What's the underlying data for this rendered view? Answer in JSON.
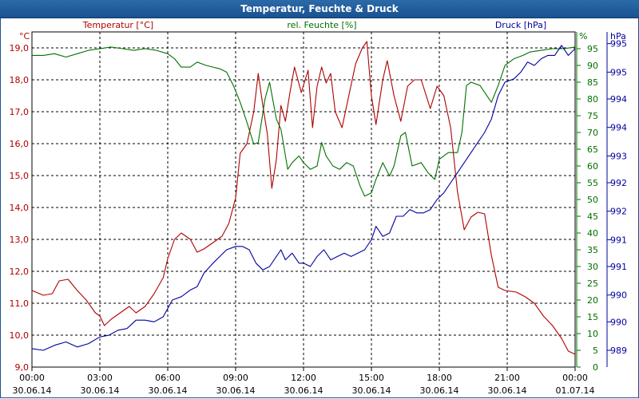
{
  "window": {
    "title": "Temperatur, Feuchte & Druck"
  },
  "colors": {
    "temperature": "#b00000",
    "humidity": "#007000",
    "pressure": "#0000a0",
    "grid": "#000000"
  },
  "chart_data": {
    "type": "line",
    "title": "Temperatur, Feuchte & Druck",
    "x_tick_times": [
      "00:00",
      "03:00",
      "06:00",
      "09:00",
      "12:00",
      "15:00",
      "18:00",
      "21:00",
      "00:00"
    ],
    "x_tick_dates": [
      "30.06.14",
      "30.06.14",
      "30.06.14",
      "30.06.14",
      "30.06.14",
      "30.06.14",
      "30.06.14",
      "30.06.14",
      "01.07.14"
    ],
    "xlim_hours": [
      0,
      24
    ],
    "axes": {
      "temperature": {
        "label": "Temperatur [°C]",
        "unit": "°C",
        "range": [
          9.0,
          19.5
        ],
        "ticks": [
          "9,0",
          "10,0",
          "11,0",
          "12,0",
          "13,0",
          "14,0",
          "15,0",
          "16,0",
          "17,0",
          "18,0",
          "19,0"
        ]
      },
      "humidity": {
        "label": "rel. Feuchte [%]",
        "unit": "%",
        "range": [
          0,
          100
        ],
        "ticks": [
          "0",
          "5",
          "10",
          "15",
          "20",
          "25",
          "30",
          "35",
          "40",
          "45",
          "50",
          "55",
          "60",
          "65",
          "70",
          "75",
          "80",
          "85",
          "90",
          "95"
        ]
      },
      "pressure": {
        "label": "Druck [hPa]",
        "unit": "hPa",
        "range": [
          0,
          100
        ],
        "ticks": [
          {
            "label": "989",
            "pos": 5
          },
          {
            "label": "990",
            "pos": 13.5
          },
          {
            "label": "990",
            "pos": 21.5
          },
          {
            "label": "991",
            "pos": 30
          },
          {
            "label": "991",
            "pos": 38
          },
          {
            "label": "992",
            "pos": 46.5
          },
          {
            "label": "992",
            "pos": 55
          },
          {
            "label": "993",
            "pos": 63
          },
          {
            "label": "994",
            "pos": 71.5
          },
          {
            "label": "994",
            "pos": 80
          },
          {
            "label": "995",
            "pos": 88
          },
          {
            "label": "995",
            "pos": 96.5
          }
        ]
      }
    },
    "series": [
      {
        "name": "Temperatur",
        "axis": "temperature",
        "points": [
          [
            0,
            11.4
          ],
          [
            0.5,
            11.25
          ],
          [
            0.9,
            11.3
          ],
          [
            1.2,
            11.7
          ],
          [
            1.6,
            11.75
          ],
          [
            2.0,
            11.4
          ],
          [
            2.4,
            11.1
          ],
          [
            2.8,
            10.7
          ],
          [
            3.0,
            10.6
          ],
          [
            3.2,
            10.3
          ],
          [
            3.5,
            10.5
          ],
          [
            3.9,
            10.7
          ],
          [
            4.3,
            10.9
          ],
          [
            4.6,
            10.7
          ],
          [
            5.0,
            10.9
          ],
          [
            5.4,
            11.3
          ],
          [
            5.8,
            11.8
          ],
          [
            6.0,
            12.4
          ],
          [
            6.3,
            13.0
          ],
          [
            6.6,
            13.2
          ],
          [
            7.0,
            13.0
          ],
          [
            7.3,
            12.6
          ],
          [
            7.6,
            12.7
          ],
          [
            8.0,
            12.9
          ],
          [
            8.4,
            13.1
          ],
          [
            8.7,
            13.5
          ],
          [
            9.0,
            14.3
          ],
          [
            9.2,
            15.7
          ],
          [
            9.5,
            16.0
          ],
          [
            9.8,
            17.0
          ],
          [
            10.0,
            18.2
          ],
          [
            10.2,
            17.2
          ],
          [
            10.4,
            16.3
          ],
          [
            10.6,
            14.6
          ],
          [
            10.8,
            15.5
          ],
          [
            11.0,
            17.2
          ],
          [
            11.2,
            16.7
          ],
          [
            11.4,
            17.6
          ],
          [
            11.6,
            18.4
          ],
          [
            11.9,
            17.6
          ],
          [
            12.2,
            18.3
          ],
          [
            12.4,
            16.5
          ],
          [
            12.6,
            17.8
          ],
          [
            12.8,
            18.4
          ],
          [
            13.0,
            17.9
          ],
          [
            13.2,
            18.2
          ],
          [
            13.4,
            17.0
          ],
          [
            13.7,
            16.5
          ],
          [
            14.0,
            17.5
          ],
          [
            14.3,
            18.5
          ],
          [
            14.6,
            19.0
          ],
          [
            14.8,
            19.2
          ],
          [
            15.0,
            17.5
          ],
          [
            15.2,
            16.6
          ],
          [
            15.5,
            18.0
          ],
          [
            15.7,
            18.6
          ],
          [
            16.0,
            17.5
          ],
          [
            16.3,
            16.7
          ],
          [
            16.6,
            17.8
          ],
          [
            16.9,
            18.0
          ],
          [
            17.2,
            18.0
          ],
          [
            17.6,
            17.1
          ],
          [
            17.9,
            17.8
          ],
          [
            18.2,
            17.5
          ],
          [
            18.5,
            16.5
          ],
          [
            18.8,
            14.5
          ],
          [
            19.1,
            13.3
          ],
          [
            19.4,
            13.7
          ],
          [
            19.7,
            13.85
          ],
          [
            20.0,
            13.8
          ],
          [
            20.3,
            12.5
          ],
          [
            20.6,
            11.5
          ],
          [
            20.9,
            11.4
          ],
          [
            21.4,
            11.35
          ],
          [
            21.8,
            11.2
          ],
          [
            22.2,
            11.0
          ],
          [
            22.6,
            10.6
          ],
          [
            23.0,
            10.3
          ],
          [
            23.4,
            9.9
          ],
          [
            23.7,
            9.5
          ],
          [
            24.0,
            9.4
          ]
        ]
      },
      {
        "name": "rel. Feuchte",
        "axis": "humidity",
        "points": [
          [
            0,
            93
          ],
          [
            0.5,
            93
          ],
          [
            1.0,
            93.5
          ],
          [
            1.5,
            92.5
          ],
          [
            2.0,
            93.5
          ],
          [
            2.5,
            94.5
          ],
          [
            3.0,
            95
          ],
          [
            3.5,
            95.5
          ],
          [
            4.0,
            95
          ],
          [
            4.5,
            94.5
          ],
          [
            5.0,
            95
          ],
          [
            5.5,
            94.5
          ],
          [
            6.0,
            93.5
          ],
          [
            6.3,
            92
          ],
          [
            6.6,
            89.5
          ],
          [
            7.0,
            89.5
          ],
          [
            7.3,
            91
          ],
          [
            7.7,
            90
          ],
          [
            8.0,
            89.5
          ],
          [
            8.3,
            89
          ],
          [
            8.6,
            88
          ],
          [
            8.9,
            84
          ],
          [
            9.2,
            79
          ],
          [
            9.5,
            73
          ],
          [
            9.8,
            66.5
          ],
          [
            10.0,
            67
          ],
          [
            10.3,
            80
          ],
          [
            10.5,
            85
          ],
          [
            10.8,
            74
          ],
          [
            11.0,
            71
          ],
          [
            11.3,
            59
          ],
          [
            11.5,
            61
          ],
          [
            11.8,
            63
          ],
          [
            12.0,
            61
          ],
          [
            12.3,
            59
          ],
          [
            12.6,
            60
          ],
          [
            12.8,
            67
          ],
          [
            13.0,
            63
          ],
          [
            13.3,
            60
          ],
          [
            13.6,
            59
          ],
          [
            13.9,
            61
          ],
          [
            14.2,
            60
          ],
          [
            14.5,
            54
          ],
          [
            14.7,
            51
          ],
          [
            15.0,
            52
          ],
          [
            15.2,
            56
          ],
          [
            15.5,
            61
          ],
          [
            15.8,
            57
          ],
          [
            16.0,
            60
          ],
          [
            16.3,
            69
          ],
          [
            16.5,
            70
          ],
          [
            16.8,
            60
          ],
          [
            17.2,
            61
          ],
          [
            17.5,
            58
          ],
          [
            17.8,
            56
          ],
          [
            18.0,
            62
          ],
          [
            18.4,
            64
          ],
          [
            18.6,
            64
          ],
          [
            18.8,
            64
          ],
          [
            19.0,
            70
          ],
          [
            19.2,
            84
          ],
          [
            19.4,
            85
          ],
          [
            19.8,
            84
          ],
          [
            20.1,
            81
          ],
          [
            20.3,
            79
          ],
          [
            20.6,
            84
          ],
          [
            20.9,
            90
          ],
          [
            21.3,
            92
          ],
          [
            21.7,
            93
          ],
          [
            22.0,
            94
          ],
          [
            22.5,
            94.5
          ],
          [
            23.0,
            95
          ],
          [
            23.5,
            95
          ],
          [
            24.0,
            95.5
          ]
        ]
      },
      {
        "name": "Druck",
        "axis": "pressure",
        "points": [
          [
            0,
            5.5
          ],
          [
            0.5,
            5
          ],
          [
            1.0,
            6.5
          ],
          [
            1.5,
            7.5
          ],
          [
            2.0,
            6
          ],
          [
            2.5,
            7
          ],
          [
            3.0,
            9
          ],
          [
            3.4,
            9.5
          ],
          [
            3.8,
            11
          ],
          [
            4.2,
            11.5
          ],
          [
            4.6,
            14
          ],
          [
            5.0,
            14
          ],
          [
            5.4,
            13.5
          ],
          [
            5.8,
            15
          ],
          [
            6.2,
            20
          ],
          [
            6.6,
            21
          ],
          [
            7.0,
            23
          ],
          [
            7.3,
            24
          ],
          [
            7.6,
            28
          ],
          [
            8.0,
            31
          ],
          [
            8.3,
            33
          ],
          [
            8.6,
            35
          ],
          [
            9.0,
            36
          ],
          [
            9.3,
            36
          ],
          [
            9.6,
            35
          ],
          [
            9.9,
            31
          ],
          [
            10.2,
            29
          ],
          [
            10.5,
            30
          ],
          [
            10.8,
            33
          ],
          [
            11.0,
            35
          ],
          [
            11.2,
            32
          ],
          [
            11.5,
            34
          ],
          [
            11.8,
            31
          ],
          [
            12.0,
            31
          ],
          [
            12.3,
            30
          ],
          [
            12.6,
            33
          ],
          [
            12.9,
            35
          ],
          [
            13.2,
            32
          ],
          [
            13.5,
            33
          ],
          [
            13.8,
            34
          ],
          [
            14.1,
            33
          ],
          [
            14.4,
            34
          ],
          [
            14.7,
            35
          ],
          [
            15.0,
            38
          ],
          [
            15.2,
            42
          ],
          [
            15.5,
            39
          ],
          [
            15.8,
            40
          ],
          [
            16.1,
            45
          ],
          [
            16.4,
            45
          ],
          [
            16.7,
            47
          ],
          [
            17.0,
            46
          ],
          [
            17.3,
            46
          ],
          [
            17.6,
            47
          ],
          [
            17.9,
            50
          ],
          [
            18.2,
            52
          ],
          [
            18.5,
            55
          ],
          [
            18.8,
            58
          ],
          [
            19.1,
            61
          ],
          [
            19.4,
            64
          ],
          [
            19.7,
            67
          ],
          [
            20.0,
            70
          ],
          [
            20.3,
            74
          ],
          [
            20.6,
            81
          ],
          [
            20.9,
            85
          ],
          [
            21.3,
            86
          ],
          [
            21.6,
            88
          ],
          [
            21.9,
            91
          ],
          [
            22.2,
            90
          ],
          [
            22.5,
            92
          ],
          [
            22.8,
            93
          ],
          [
            23.1,
            93
          ],
          [
            23.4,
            96
          ],
          [
            23.7,
            93
          ],
          [
            24.0,
            95
          ]
        ]
      }
    ]
  }
}
